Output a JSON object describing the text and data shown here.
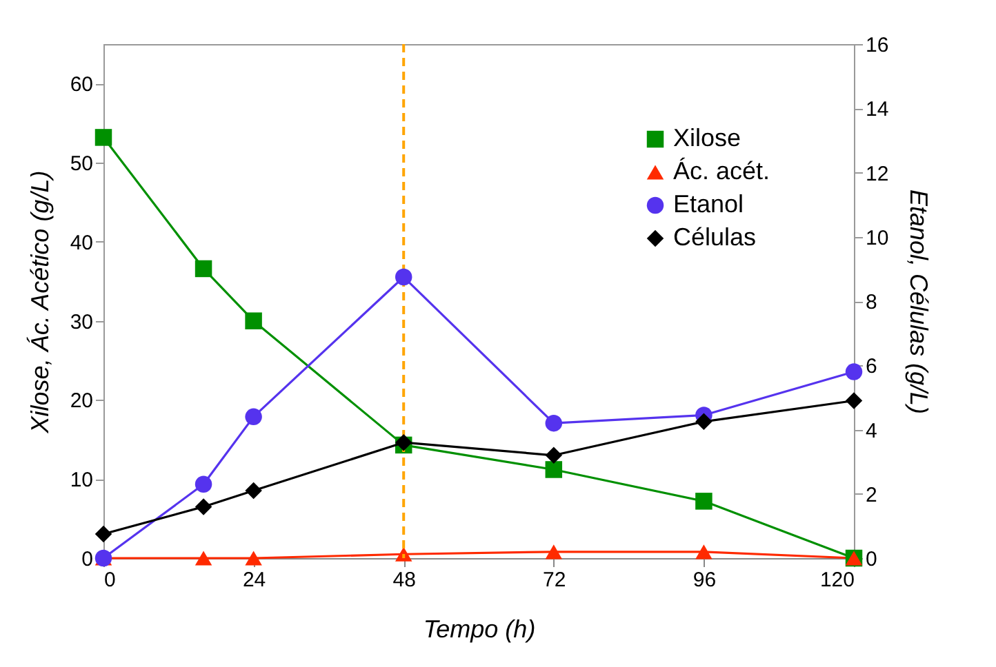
{
  "chart_data": {
    "type": "line",
    "xlabel": "Tempo (h)",
    "ylabel": "Xilose, Ác. Acético (g/L)",
    "y2label": "Etanol, Células (g/L)",
    "x": [
      0,
      16,
      24,
      48,
      72,
      96,
      120
    ],
    "series": [
      {
        "name": "Xilose",
        "color": "#009000",
        "marker": "square",
        "values": [
          53.2,
          36.6,
          30,
          14.3,
          11.2,
          7.2,
          0
        ]
      },
      {
        "name": "Ác. acét.",
        "color": "#ff2a00",
        "marker": "triangle",
        "values": [
          0,
          0,
          0,
          0.5,
          0.8,
          0.8,
          0
        ]
      },
      {
        "name": "Etanol",
        "color": "#5533ee",
        "marker": "circle",
        "axis": "y2",
        "values": [
          0,
          2.3,
          4.4,
          8.75,
          4.2,
          4.45,
          5.8
        ]
      },
      {
        "name": "Células",
        "color": "#000000",
        "marker": "diamond",
        "axis": "y2",
        "values": [
          0.75,
          1.6,
          2.1,
          3.6,
          3.2,
          4.25,
          4.9
        ]
      }
    ],
    "xlim": [
      0,
      120
    ],
    "xticks": [
      0,
      24,
      48,
      72,
      96,
      120
    ],
    "ylim": [
      0,
      65
    ],
    "yticks": [
      0,
      10,
      20,
      30,
      40,
      50,
      60
    ],
    "y2lim": [
      0,
      16
    ],
    "y2ticks": [
      0,
      2,
      4,
      6,
      8,
      10,
      12,
      14,
      16
    ],
    "ref_lines": [
      {
        "axis": "x",
        "value": 48,
        "color": "#ffa500",
        "line_style": "dashed"
      }
    ],
    "legend": "top right",
    "grid": false
  }
}
